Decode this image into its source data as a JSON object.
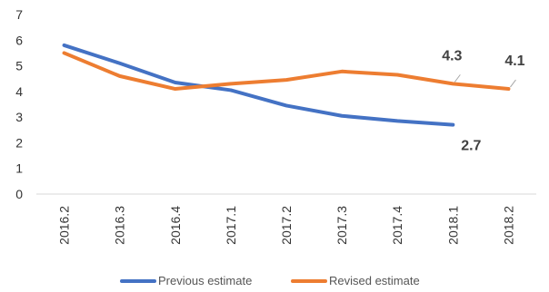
{
  "chart_data": {
    "type": "line",
    "title": "",
    "xlabel": "",
    "ylabel": "",
    "categories": [
      "2016.2",
      "2016.3",
      "2016.4",
      "2017.1",
      "2017.2",
      "2017.3",
      "2017.4",
      "2018.1",
      "2018.2"
    ],
    "ylim": [
      0,
      7
    ],
    "yticks": [
      "0",
      "1",
      "2",
      "3",
      "4",
      "5",
      "6",
      "7"
    ],
    "grid": false,
    "legend": "bottom",
    "series": [
      {
        "name": "Previous estimate",
        "color": "#4472C4",
        "values": [
          5.8,
          5.1,
          4.35,
          4.05,
          3.45,
          3.05,
          2.85,
          2.7,
          null
        ]
      },
      {
        "name": "Revised estimate",
        "color": "#ED7D31",
        "values": [
          5.5,
          4.6,
          4.1,
          4.3,
          4.45,
          4.78,
          4.65,
          4.3,
          4.1
        ]
      }
    ],
    "annotations": [
      {
        "series": 1,
        "index": 7,
        "text": "4.3"
      },
      {
        "series": 1,
        "index": 8,
        "text": "4.1"
      },
      {
        "series": 0,
        "index": 7,
        "text": "2.7"
      }
    ]
  }
}
